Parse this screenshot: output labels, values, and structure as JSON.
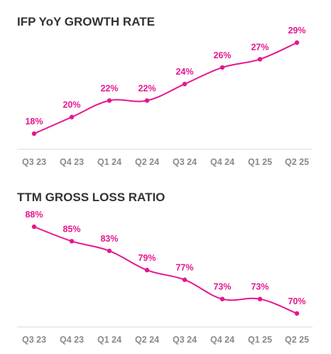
{
  "accent_color": "#E6168F",
  "tick_color": "#8A8A8A",
  "title_color": "#333333",
  "chart_data": [
    {
      "type": "line",
      "title": "IFP YoY GROWTH RATE",
      "categories": [
        "Q3 23",
        "Q4 23",
        "Q1 24",
        "Q2 24",
        "Q3 24",
        "Q4 24",
        "Q1 25",
        "Q2 25"
      ],
      "values": [
        18,
        20,
        22,
        22,
        24,
        26,
        27,
        29
      ],
      "labels": [
        "18%",
        "20%",
        "22%",
        "22%",
        "24%",
        "26%",
        "27%",
        "29%"
      ],
      "unit": "%",
      "ylim": [
        14,
        31
      ],
      "grid": false,
      "legend": "none"
    },
    {
      "type": "line",
      "title": "TTM GROSS LOSS RATIO",
      "categories": [
        "Q3 23",
        "Q4 23",
        "Q1 24",
        "Q2 24",
        "Q3 24",
        "Q4 24",
        "Q1 25",
        "Q2 25"
      ],
      "values": [
        88,
        85,
        83,
        79,
        77,
        73,
        73,
        70
      ],
      "labels": [
        "88%",
        "85%",
        "83%",
        "79%",
        "77%",
        "73%",
        "73%",
        "70%"
      ],
      "unit": "%",
      "ylim": [
        68,
        91
      ],
      "grid": false,
      "legend": "none"
    }
  ]
}
